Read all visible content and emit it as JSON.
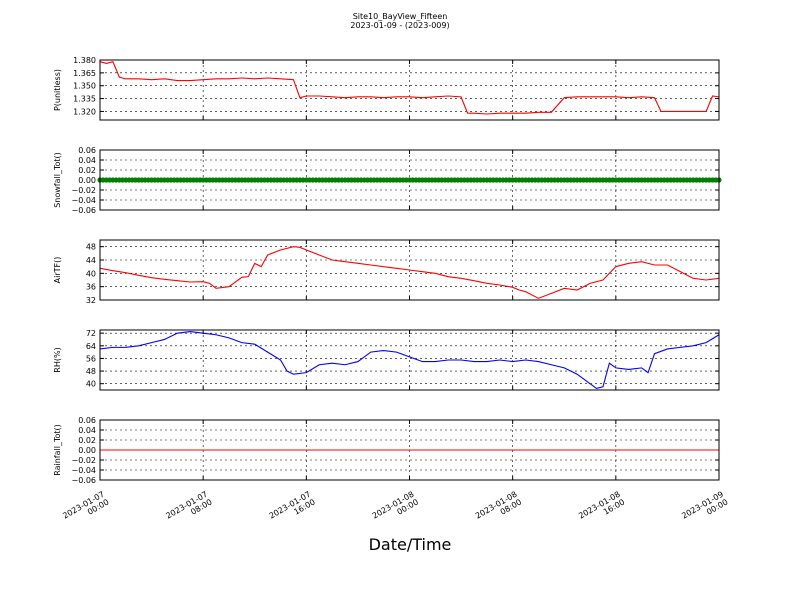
{
  "header": {
    "title": "Site10_BayView_Fifteen",
    "subtitle": "2023-01-09 - (2023-009)"
  },
  "xaxis": {
    "label": "Date/Time",
    "ticks": [
      {
        "l1": "2023-01-07",
        "l2": "00:00"
      },
      {
        "l1": "2023-01-07",
        "l2": "08:00"
      },
      {
        "l1": "2023-01-07",
        "l2": "16:00"
      },
      {
        "l1": "2023-01-08",
        "l2": "00:00"
      },
      {
        "l1": "2023-01-08",
        "l2": "08:00"
      },
      {
        "l1": "2023-01-08",
        "l2": "16:00"
      },
      {
        "l1": "2023-01-09",
        "l2": "00:00"
      }
    ]
  },
  "chart_data": [
    {
      "type": "line",
      "ylabel": "P(unitless)",
      "ylim": [
        1.31,
        1.38
      ],
      "yticks": [
        "1.380",
        "1.365",
        "1.350",
        "1.335",
        "1.320"
      ],
      "ytick_values": [
        1.38,
        1.365,
        1.35,
        1.335,
        1.32
      ],
      "color": "#ff0000",
      "grid": true,
      "x_hours": [
        0,
        0.5,
        1,
        1.5,
        2,
        3,
        4,
        5,
        6,
        7,
        8,
        9,
        10,
        11,
        12,
        13,
        14,
        15,
        15.5,
        16,
        17,
        18,
        19,
        20,
        21,
        22,
        23,
        24,
        25,
        26,
        27,
        28,
        28.5,
        29,
        30,
        31,
        32,
        33,
        34,
        35,
        36,
        37,
        38,
        39,
        40,
        41,
        42,
        43,
        43.5,
        44,
        45,
        46,
        47,
        47.5,
        48
      ],
      "values": [
        1.378,
        1.376,
        1.378,
        1.36,
        1.358,
        1.358,
        1.357,
        1.358,
        1.356,
        1.356,
        1.357,
        1.358,
        1.358,
        1.359,
        1.358,
        1.359,
        1.358,
        1.357,
        1.336,
        1.338,
        1.338,
        1.337,
        1.336,
        1.337,
        1.337,
        1.336,
        1.337,
        1.337,
        1.336,
        1.337,
        1.338,
        1.337,
        1.318,
        1.318,
        1.317,
        1.318,
        1.318,
        1.318,
        1.319,
        1.319,
        1.336,
        1.337,
        1.337,
        1.337,
        1.337,
        1.336,
        1.337,
        1.336,
        1.32,
        1.32,
        1.32,
        1.32,
        1.32,
        1.338,
        1.337
      ]
    },
    {
      "type": "scatter",
      "ylabel": "Snowfall_Tot()",
      "ylim": [
        -0.06,
        0.06
      ],
      "yticks": [
        "0.06",
        "0.04",
        "0.02",
        "0.00",
        "−0.02",
        "−0.04",
        "−0.06"
      ],
      "ytick_values": [
        0.06,
        0.04,
        0.02,
        0,
        -0.02,
        -0.04,
        -0.06
      ],
      "color": "#008000",
      "grid": true,
      "value": 0
    },
    {
      "type": "line",
      "ylabel": "AirTF()",
      "ylim": [
        32,
        50
      ],
      "yticks": [
        "48",
        "44",
        "40",
        "36",
        "32"
      ],
      "ytick_values": [
        48,
        44,
        40,
        36,
        32
      ],
      "color": "#ff0000",
      "grid": true,
      "x_hours": [
        0,
        1,
        2,
        3,
        4,
        5,
        6,
        7,
        8,
        8.5,
        9,
        10,
        11,
        11.5,
        12,
        12.5,
        13,
        14,
        15,
        15.5,
        16,
        17,
        18,
        19,
        20,
        21,
        22,
        23,
        24,
        25,
        26,
        27,
        28,
        29,
        30,
        31,
        32,
        32.5,
        33,
        34,
        35,
        36,
        37,
        38,
        39,
        40,
        41,
        42,
        43,
        44,
        45,
        46,
        47,
        48
      ],
      "values": [
        41.5,
        40.8,
        40.2,
        39.4,
        38.7,
        38.2,
        37.8,
        37.4,
        37.5,
        37,
        35.5,
        36,
        38.8,
        39,
        43,
        42,
        45.5,
        47,
        48,
        47.8,
        47,
        45.5,
        44,
        43.5,
        43,
        42.5,
        42,
        41.5,
        41,
        40.5,
        40,
        39,
        38.5,
        37.8,
        37,
        36.5,
        35.8,
        35,
        34.5,
        32.5,
        34,
        35.5,
        35,
        37,
        38,
        42,
        43,
        43.5,
        42.5,
        42.5,
        40.5,
        38.5,
        38,
        38.5
      ]
    },
    {
      "type": "line",
      "ylabel": "RH(%)",
      "ylim": [
        36,
        74
      ],
      "yticks": [
        "72",
        "64",
        "56",
        "48",
        "40"
      ],
      "ytick_values": [
        72,
        64,
        56,
        48,
        40
      ],
      "color": "#0000ff",
      "grid": true,
      "x_hours": [
        0,
        1,
        2,
        3,
        4,
        5,
        6,
        7,
        8,
        9,
        10,
        11,
        12,
        13,
        14,
        14.5,
        15,
        16,
        17,
        18,
        19,
        20,
        21,
        22,
        23,
        24,
        25,
        26,
        27,
        28,
        29,
        30,
        31,
        32,
        33,
        34,
        35,
        36,
        37,
        38,
        38.5,
        39,
        39.5,
        40,
        41,
        42,
        42.5,
        43,
        44,
        45,
        46,
        47,
        48
      ],
      "values": [
        62,
        63,
        63,
        64,
        66,
        68,
        72,
        73,
        72,
        71,
        69,
        66,
        65,
        60,
        55,
        48,
        46,
        47,
        52,
        53,
        52,
        54,
        60,
        61,
        60,
        57,
        54,
        54,
        55,
        55,
        54,
        54,
        55,
        54,
        55,
        54,
        52,
        50,
        46,
        40,
        37,
        38,
        53,
        50,
        49,
        50,
        47,
        59,
        62,
        63,
        64,
        66,
        71
      ]
    },
    {
      "type": "line",
      "ylabel": "Rainfall_Tot()",
      "ylim": [
        -0.06,
        0.06
      ],
      "yticks": [
        "0.06",
        "0.04",
        "0.02",
        "0.00",
        "−0.02",
        "−0.04",
        "−0.06"
      ],
      "ytick_values": [
        0.06,
        0.04,
        0.02,
        0,
        -0.02,
        -0.04,
        -0.06
      ],
      "color": "#ff0000",
      "grid": true,
      "x_hours": [
        0,
        48
      ],
      "values": [
        0,
        0
      ]
    }
  ]
}
